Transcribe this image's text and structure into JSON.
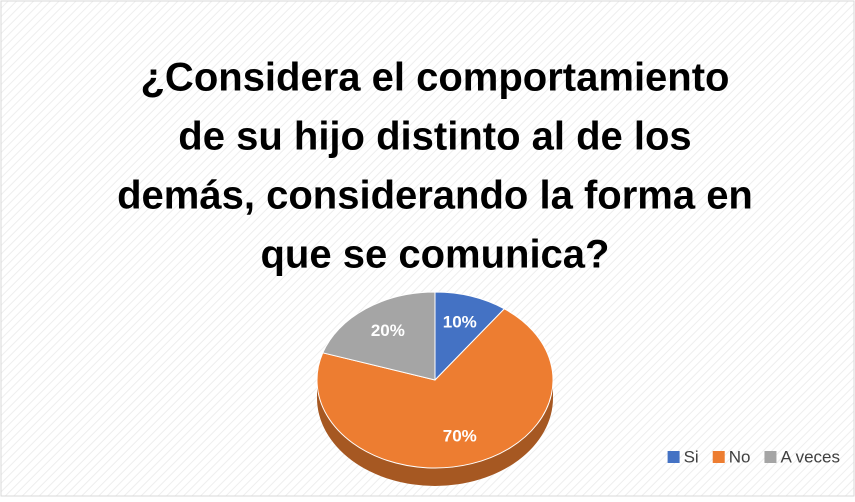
{
  "chart_data": {
    "type": "pie",
    "title": [
      "¿Considera el comportamiento",
      "de su hijo distinto al de los",
      "demás, considerando la forma en",
      "que se comunica?"
    ],
    "categories": [
      "Si",
      "No",
      "A veces"
    ],
    "values": [
      10,
      70,
      20
    ],
    "value_labels": [
      "10%",
      "70%",
      "20%"
    ],
    "colors": [
      "#4472c4",
      "#ed7d31",
      "#a5a5a5"
    ],
    "legend": "bottom-right"
  }
}
